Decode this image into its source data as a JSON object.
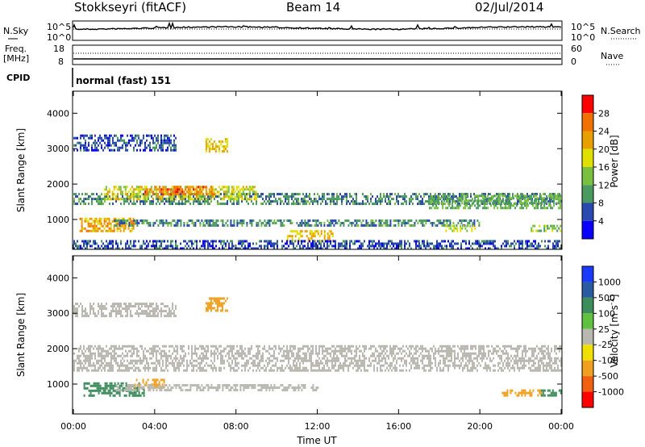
{
  "header": {
    "radar": "Stokkseyri (fitACF)",
    "beam": "Beam 14",
    "date": "02/Jul/2014"
  },
  "top_panels": {
    "nsky_label": "N.Sky",
    "nsearch_label": "N.Search",
    "freq_label_1": "Freq.",
    "freq_label_2": "[MHz]",
    "nave_label": "Nave",
    "cpid_label": "CPID",
    "cpid_value": "normal (fast) 151",
    "noise_ticks_left": [
      "10^5",
      "10^0"
    ],
    "noise_ticks_right": [
      "10^5",
      "10^0"
    ],
    "freq_ticks": [
      "18",
      "8"
    ],
    "nave_ticks": [
      "60",
      "0"
    ]
  },
  "colorbars": {
    "power": {
      "label": "Power [dB]",
      "ticks": [
        "28",
        "24",
        "20",
        "16",
        "12",
        "8",
        "4"
      ],
      "colors": [
        "#ff0000",
        "#f07000",
        "#e8a000",
        "#e0e000",
        "#7ac040",
        "#4a9a60",
        "#2a4ab0",
        "#0a00ff"
      ]
    },
    "velocity": {
      "label": "Velocity [m s^-1]",
      "ticks": [
        "1000",
        "500",
        "100",
        "25",
        "-25",
        "-100",
        "-500",
        "-1000"
      ],
      "colors": [
        "#1a3aff",
        "#2a5aa0",
        "#3c8c5c",
        "#60c040",
        "#b8b8b0",
        "#f0e000",
        "#f0a020",
        "#f06010",
        "#ff0000"
      ]
    }
  },
  "chart_data": [
    {
      "type": "heatmap",
      "name": "power",
      "xlabel": "",
      "ylabel": "Slant Range [km]",
      "xlim": [
        0,
        24
      ],
      "ylim": [
        180,
        4600
      ],
      "yticks": [
        "4000",
        "3000",
        "2000",
        "1000"
      ],
      "yvals": [
        4000,
        3000,
        2000,
        1000
      ],
      "features": [
        {
          "t0": 0.0,
          "t1": 24.0,
          "r0": 1450,
          "r1": 1750,
          "v": 9
        },
        {
          "t0": 1.5,
          "t1": 9.0,
          "r0": 1600,
          "r1": 1950,
          "v": 18
        },
        {
          "t0": 3.5,
          "t1": 7.0,
          "r0": 1700,
          "r1": 1950,
          "v": 26
        },
        {
          "t0": 0.3,
          "t1": 3.0,
          "r0": 650,
          "r1": 1050,
          "v": 22
        },
        {
          "t0": 2.0,
          "t1": 20.0,
          "r0": 800,
          "r1": 1000,
          "v": 9
        },
        {
          "t0": 10.5,
          "t1": 12.8,
          "r0": 380,
          "r1": 700,
          "v": 20
        },
        {
          "t0": 6.5,
          "t1": 7.6,
          "r0": 2950,
          "r1": 3300,
          "v": 20
        },
        {
          "t0": 0.0,
          "t1": 5.0,
          "r0": 2950,
          "r1": 3400,
          "v": 6
        },
        {
          "t0": 18.3,
          "t1": 19.8,
          "r0": 650,
          "r1": 850,
          "v": 16
        },
        {
          "t0": 22.5,
          "t1": 24.0,
          "r0": 650,
          "r1": 850,
          "v": 14
        },
        {
          "t0": 17.5,
          "t1": 24.0,
          "r0": 1300,
          "r1": 1700,
          "v": 12
        },
        {
          "t0": 0.0,
          "t1": 24.0,
          "r0": 200,
          "r1": 420,
          "v": 6
        }
      ]
    },
    {
      "type": "heatmap",
      "name": "velocity",
      "xlabel": "Time UT",
      "ylabel": "Slant Range [km]",
      "xlim": [
        0,
        24
      ],
      "ylim": [
        180,
        4600
      ],
      "xticks": [
        "00:00",
        "04:00",
        "08:00",
        "12:00",
        "16:00",
        "20:00",
        "00:00"
      ],
      "xvals": [
        0,
        4,
        8,
        12,
        16,
        20,
        24
      ],
      "yticks": [
        "4000",
        "3000",
        "2000",
        "1000"
      ],
      "yvals": [
        4000,
        3000,
        2000,
        1000
      ],
      "features": [
        {
          "t0": 0.0,
          "t1": 24.0,
          "r0": 1400,
          "r1": 2100,
          "v": 0
        },
        {
          "t0": 0.5,
          "t1": 3.5,
          "r0": 650,
          "r1": 1050,
          "v": 150
        },
        {
          "t0": 3.0,
          "t1": 4.5,
          "r0": 900,
          "r1": 1150,
          "v": -150
        },
        {
          "t0": 6.5,
          "t1": 7.6,
          "r0": 3100,
          "r1": 3450,
          "v": -200
        },
        {
          "t0": 2.0,
          "t1": 12.0,
          "r0": 800,
          "r1": 1000,
          "v": 0
        },
        {
          "t0": 21.0,
          "t1": 23.0,
          "r0": 650,
          "r1": 850,
          "v": -200
        },
        {
          "t0": 23.0,
          "t1": 24.0,
          "r0": 650,
          "r1": 850,
          "v": 120
        },
        {
          "t0": 0.0,
          "t1": 5.0,
          "r0": 2900,
          "r1": 3300,
          "v": 0
        }
      ]
    }
  ]
}
